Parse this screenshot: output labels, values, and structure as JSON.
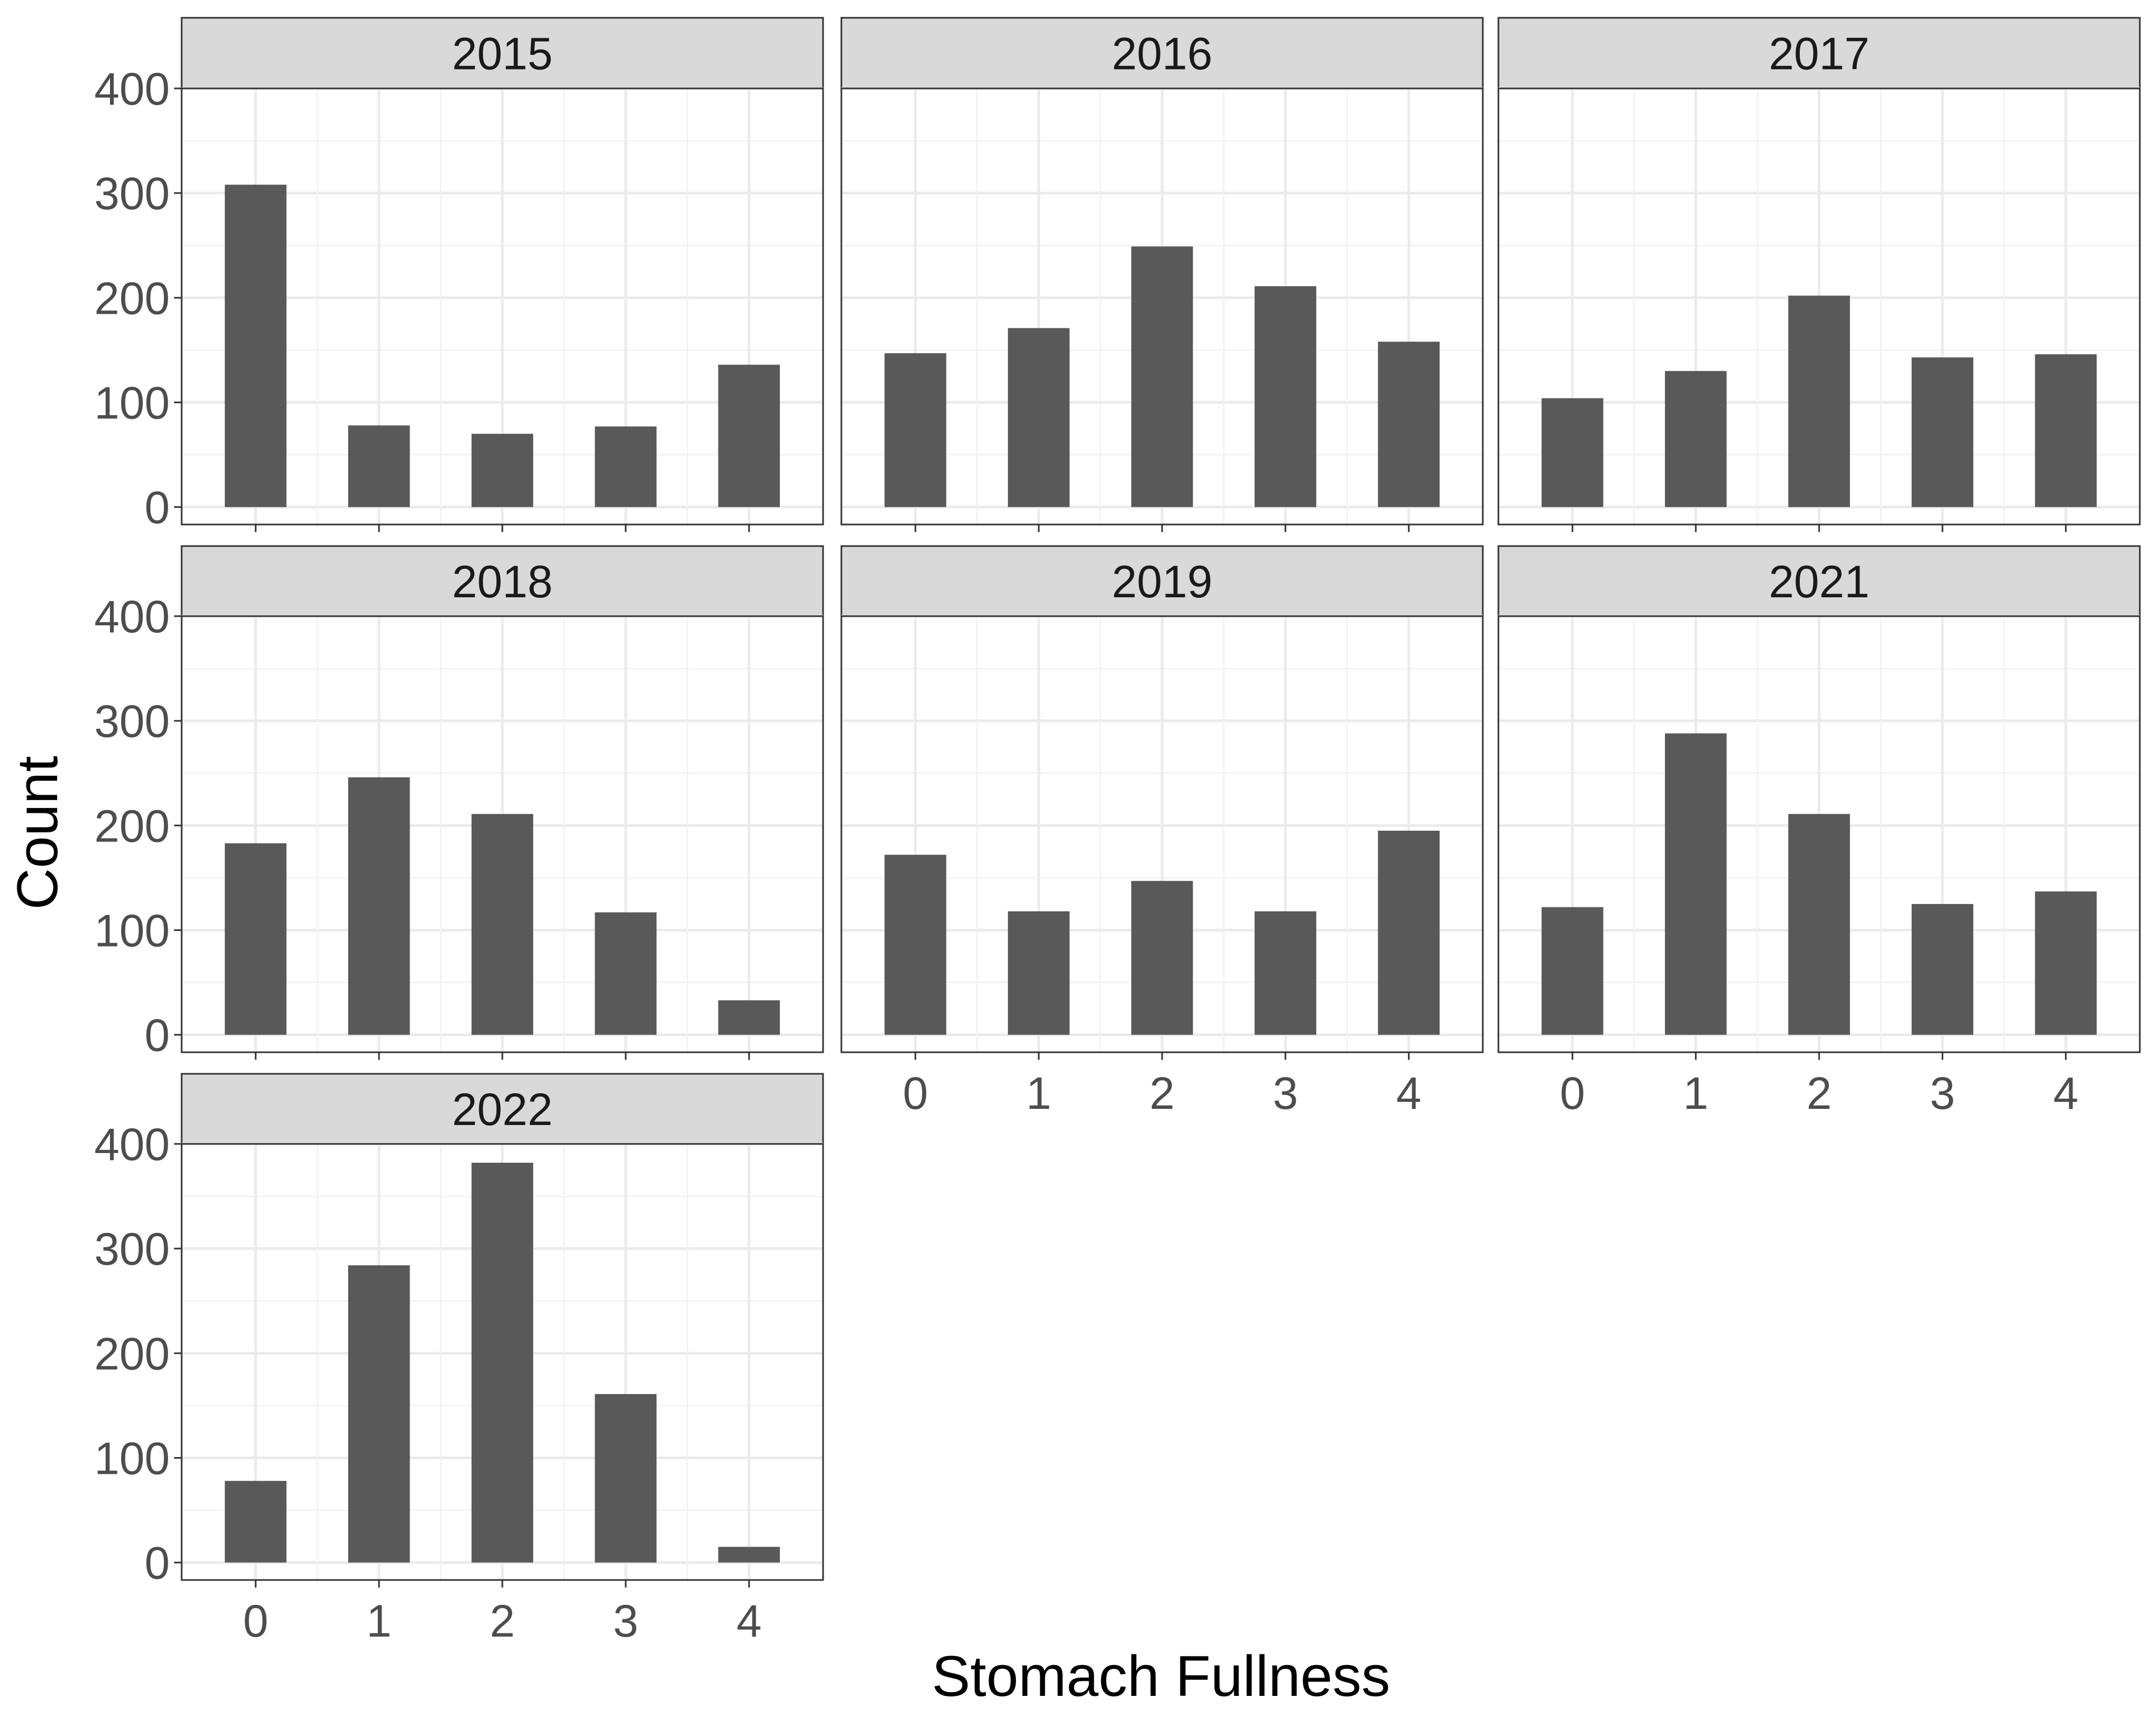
{
  "chart_data": {
    "type": "bar",
    "layout": "facet_wrap",
    "facet_columns": 3,
    "xlabel": "Stomach Fullness",
    "ylabel": "Count",
    "categories": [
      "0",
      "1",
      "2",
      "3",
      "4"
    ],
    "ylim": [
      0,
      400
    ],
    "yticks": [
      0,
      100,
      200,
      300,
      400
    ],
    "grid": true,
    "bar_color": "#595959",
    "strip_color": "#d9d9d9",
    "panels": [
      {
        "name": "2015",
        "values": [
          308,
          78,
          70,
          77,
          136
        ]
      },
      {
        "name": "2016",
        "values": [
          147,
          171,
          249,
          211,
          158
        ]
      },
      {
        "name": "2017",
        "values": [
          104,
          130,
          202,
          143,
          146
        ]
      },
      {
        "name": "2018",
        "values": [
          183,
          246,
          211,
          117,
          33
        ]
      },
      {
        "name": "2019",
        "values": [
          172,
          118,
          147,
          118,
          195
        ]
      },
      {
        "name": "2021",
        "values": [
          122,
          288,
          211,
          125,
          137
        ]
      },
      {
        "name": "2022",
        "values": [
          78,
          284,
          382,
          161,
          15
        ]
      }
    ]
  }
}
